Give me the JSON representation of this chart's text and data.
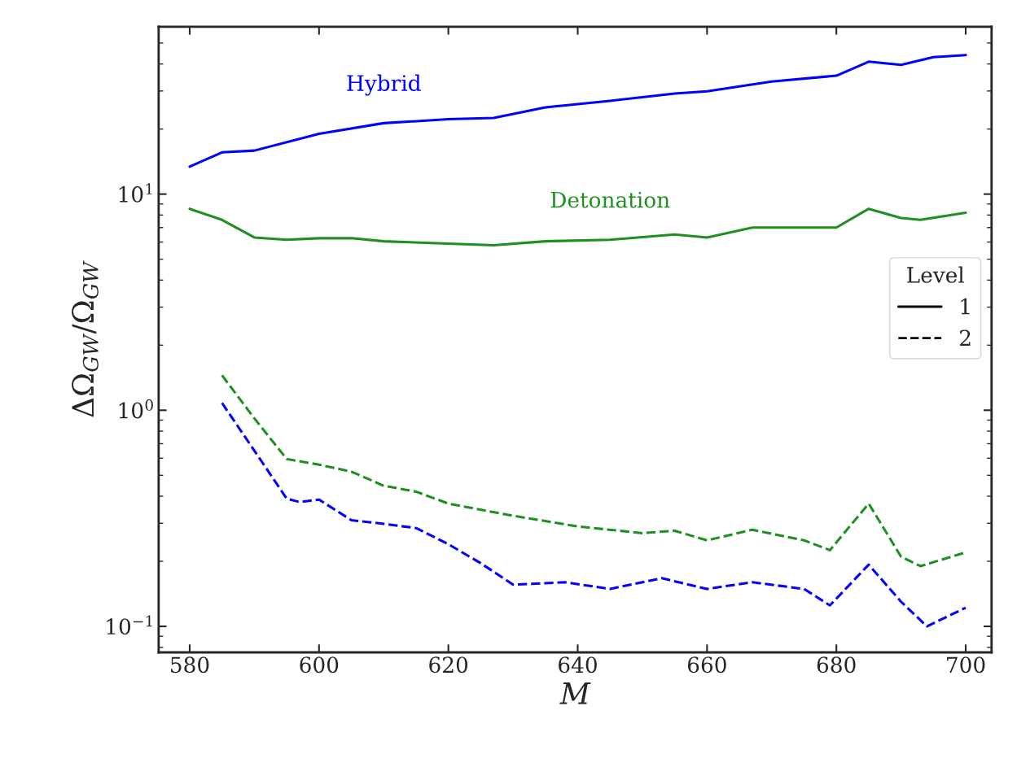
{
  "chart_data": {
    "type": "line",
    "xlabel": "M",
    "ylabel": "ΔΩ$_{GW}$/Ω$_{GW}$",
    "log": "y",
    "xlim": [
      575.2,
      704
    ],
    "xticks": [
      580,
      600,
      620,
      640,
      660,
      680,
      700
    ],
    "ylim": [
      0.0758,
      59.5
    ],
    "yticks": [
      {
        "value": 0.1,
        "label": "10$^{−1}$"
      },
      {
        "value": 1,
        "label": "10$^{0}$"
      },
      {
        "value": 10,
        "label": "10$^{1}$"
      }
    ],
    "legend": "right",
    "legend_title": "Level",
    "grid": false,
    "series": [
      {
        "name": "Hybrid",
        "color": "#0000ff",
        "line_style": "solid",
        "x": [
          580,
          585,
          590,
          600,
          610,
          620,
          627,
          635,
          645,
          655,
          660,
          670,
          680,
          685,
          690,
          695,
          700
        ],
        "values": [
          13.4,
          15.6,
          15.9,
          19.0,
          21.3,
          22.2,
          22.5,
          25.2,
          27.0,
          29.2,
          29.9,
          33.2,
          35.3,
          41,
          39.6,
          43,
          44
        ]
      },
      {
        "name": "Detonation",
        "color": "#1f8f1f",
        "line_style": "solid",
        "x": [
          580,
          585,
          590,
          595,
          600,
          605,
          610,
          620,
          627,
          635,
          645,
          655,
          660,
          667,
          675,
          680,
          685,
          690,
          693,
          700
        ],
        "values": [
          8.55,
          7.6,
          6.3,
          6.15,
          6.25,
          6.25,
          6.05,
          5.9,
          5.8,
          6.05,
          6.15,
          6.5,
          6.3,
          7.0,
          7.0,
          7.0,
          8.55,
          7.75,
          7.6,
          8.2
        ]
      },
      {
        "color": "#1f8f1f",
        "line_style": "dashed",
        "x": [
          585,
          590,
          595,
          600,
          605,
          610,
          615,
          620,
          630,
          640,
          650,
          655,
          660,
          667,
          675,
          679,
          685,
          690,
          693,
          700
        ],
        "values": [
          1.45,
          0.917,
          0.595,
          0.56,
          0.52,
          0.447,
          0.42,
          0.37,
          0.325,
          0.29,
          0.27,
          0.277,
          0.25,
          0.28,
          0.25,
          0.225,
          0.37,
          0.21,
          0.19,
          0.22
        ]
      },
      {
        "color": "#0000ff",
        "line_style": "dashed",
        "x": [
          585,
          590,
          595,
          597,
          600,
          605,
          610,
          615,
          620,
          625,
          630,
          638,
          645,
          653,
          660,
          667,
          675,
          679,
          685,
          690,
          694,
          700
        ],
        "values": [
          1.08,
          0.65,
          0.39,
          0.376,
          0.386,
          0.31,
          0.298,
          0.285,
          0.24,
          0.196,
          0.156,
          0.16,
          0.149,
          0.167,
          0.149,
          0.16,
          0.149,
          0.125,
          0.193,
          0.13,
          0.1,
          0.122
        ]
      },
      {
        "name": "1",
        "color": "#000000",
        "line_style": "solid"
      },
      {
        "name": "2",
        "color": "#000000",
        "line_style": "dashed"
      }
    ]
  }
}
